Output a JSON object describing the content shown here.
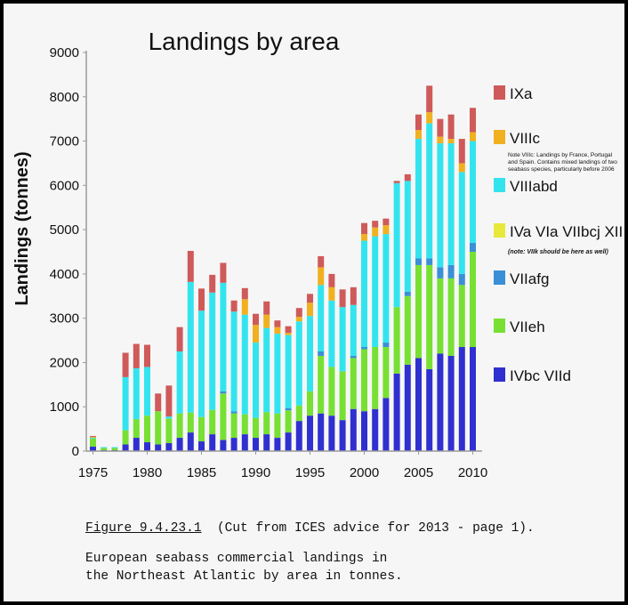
{
  "chart_data": {
    "type": "bar",
    "stacked": true,
    "title": "Landings by area",
    "xlabel": "",
    "ylabel": "Landings (tonnes)",
    "ylim": [
      0,
      9000
    ],
    "yticks": [
      0,
      1000,
      2000,
      3000,
      4000,
      5000,
      6000,
      7000,
      8000,
      9000
    ],
    "ytick_labels": [
      "0",
      "1000",
      "2000",
      "3000",
      "4000",
      "5000",
      "6000",
      "7000",
      "8000",
      "9000"
    ],
    "xtick_labels": [
      "1975",
      "1980",
      "1985",
      "1990",
      "1995",
      "2000",
      "2005",
      "2010"
    ],
    "grid": false,
    "legend_position": "right",
    "categories": [
      "1975",
      "1976",
      "1977",
      "1978",
      "1979",
      "1980",
      "1981",
      "1982",
      "1983",
      "1984",
      "1985",
      "1986",
      "1987",
      "1988",
      "1989",
      "1990",
      "1991",
      "1992",
      "1993",
      "1994",
      "1995",
      "1996",
      "1997",
      "1998",
      "1999",
      "2000",
      "2001",
      "2002",
      "2003",
      "2004",
      "2005",
      "2006",
      "2007",
      "2008",
      "2009",
      "2010"
    ],
    "series": [
      {
        "name": "IVbc VIId",
        "color": "#3030d0",
        "values": [
          100,
          20,
          20,
          150,
          300,
          200,
          150,
          180,
          300,
          420,
          220,
          380,
          250,
          300,
          380,
          300,
          380,
          300,
          420,
          680,
          800,
          850,
          800,
          700,
          950,
          900,
          950,
          1200,
          1750,
          1950,
          2100,
          1850,
          2200,
          2150,
          2350,
          2350
        ]
      },
      {
        "name": "VIIeh",
        "color": "#77e033",
        "values": [
          180,
          50,
          50,
          320,
          420,
          600,
          750,
          550,
          550,
          450,
          550,
          550,
          1050,
          550,
          450,
          450,
          500,
          550,
          500,
          350,
          550,
          1300,
          1100,
          1100,
          1150,
          1400,
          1400,
          1150,
          1500,
          1550,
          2100,
          2350,
          1700,
          1750,
          1400,
          2150
        ]
      },
      {
        "name": "VIIafg",
        "color": "#3b8fd6",
        "values": [
          0,
          0,
          0,
          0,
          0,
          0,
          0,
          0,
          0,
          0,
          0,
          0,
          50,
          50,
          0,
          0,
          0,
          0,
          50,
          0,
          0,
          100,
          0,
          0,
          50,
          50,
          0,
          100,
          0,
          100,
          150,
          150,
          250,
          300,
          250,
          200
        ]
      },
      {
        "name": "IVa VIa VIIbcj XII",
        "color": "#e8e83a",
        "values": [
          0,
          0,
          0,
          0,
          0,
          0,
          0,
          0,
          0,
          0,
          0,
          0,
          0,
          0,
          0,
          0,
          0,
          0,
          0,
          0,
          0,
          0,
          0,
          0,
          0,
          0,
          0,
          0,
          0,
          0,
          0,
          0,
          0,
          0,
          0,
          0
        ]
      },
      {
        "name": "VIIIabd",
        "color": "#33e4ef",
        "values": [
          20,
          20,
          20,
          1200,
          1150,
          1100,
          0,
          50,
          1400,
          2950,
          2400,
          2650,
          2450,
          2250,
          2250,
          1700,
          1900,
          1800,
          1650,
          1900,
          1700,
          1500,
          1500,
          1450,
          1150,
          2400,
          2500,
          2450,
          2800,
          2500,
          2700,
          3050,
          2800,
          2750,
          2300,
          2300
        ]
      },
      {
        "name": "VIIIc",
        "color": "#f0b020",
        "values": [
          20,
          0,
          0,
          0,
          0,
          0,
          0,
          0,
          0,
          0,
          0,
          0,
          0,
          0,
          350,
          400,
          300,
          150,
          50,
          100,
          300,
          400,
          300,
          0,
          0,
          150,
          200,
          200,
          0,
          0,
          200,
          250,
          150,
          100,
          200,
          200
        ]
      },
      {
        "name": "IXa",
        "color": "#cf5a5a",
        "values": [
          20,
          0,
          0,
          550,
          550,
          500,
          400,
          700,
          550,
          700,
          500,
          400,
          450,
          250,
          250,
          250,
          300,
          150,
          150,
          200,
          200,
          250,
          300,
          400,
          400,
          250,
          150,
          150,
          50,
          150,
          350,
          600,
          400,
          550,
          550,
          550
        ]
      }
    ],
    "legend_notes": {
      "VIIIc": "Note VIIIc: Landings by France, Portugal and Spain. Contains mixed landings of two seabass species, particularly before  2006",
      "IVa VIa VIIbcj XII": "(note: VIIk should be here as well)"
    }
  },
  "caption": {
    "figure_label": "Figure 9.4.23.1",
    "figure_text": "(Cut from ICES advice for 2013 - page 1).",
    "description_line1": "European seabass commercial landings in",
    "description_line2": "the Northeast Atlantic by area in tonnes."
  }
}
